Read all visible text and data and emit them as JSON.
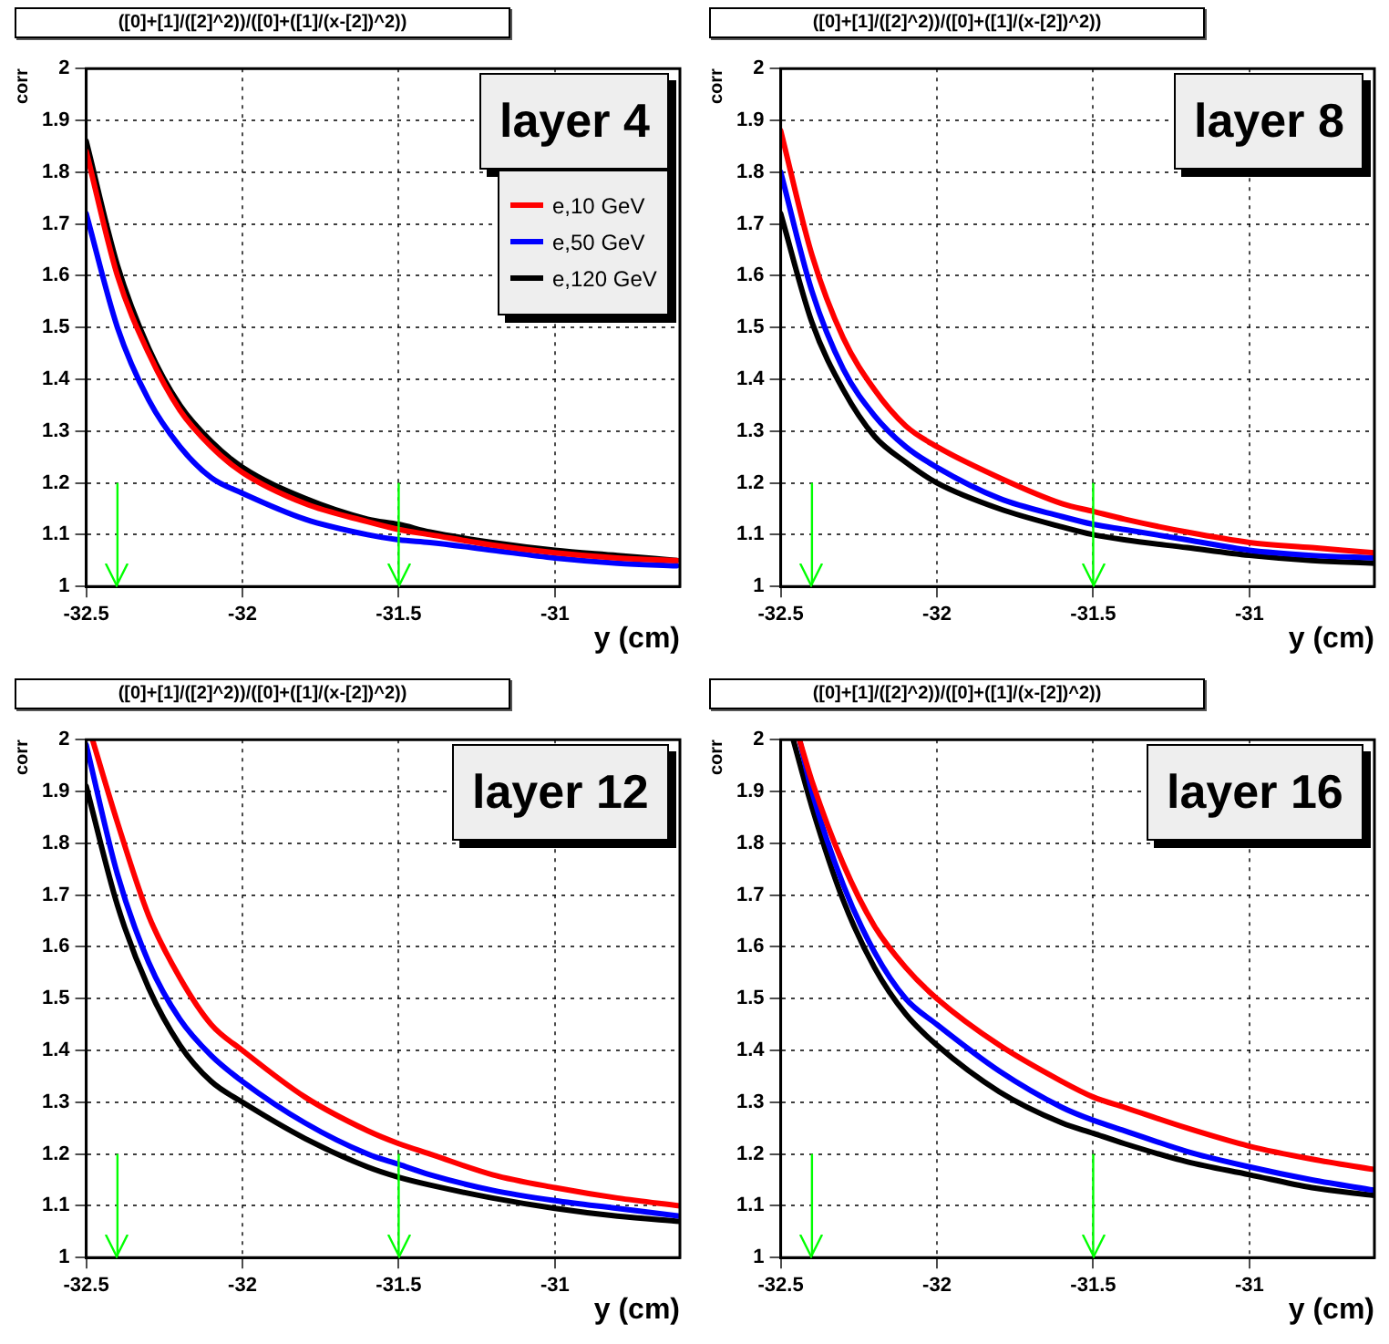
{
  "chart_data": [
    {
      "type": "line",
      "title": "([0]+[1]/([2]^2))/([0]+([1]/(x-[2])^2))",
      "xlabel": "y (cm)",
      "ylabel": "corr",
      "annotations": [
        "layer 4"
      ],
      "xlim": [
        -32.5,
        -30.6
      ],
      "xticks": [
        -32.5,
        -32,
        -31.5,
        -31
      ],
      "ylim": [
        1,
        2
      ],
      "yticks": [
        1,
        1.1,
        1.2,
        1.3,
        1.4,
        1.5,
        1.6,
        1.7,
        1.8,
        1.9,
        2
      ],
      "grid": true,
      "legend": "top right",
      "marker": "none",
      "line_style": "solid",
      "ref_lines": [
        {
          "axis": "x",
          "value": -32.4,
          "color": "#00ff00"
        },
        {
          "axis": "x",
          "value": -31.5,
          "color": "#00ff00"
        }
      ],
      "series": [
        {
          "name": "e,10 GeV",
          "color": "#ff0000",
          "x": [
            -32.5,
            -32.4,
            -32.3,
            -32.2,
            -32.1,
            -32.0,
            -31.8,
            -31.6,
            -31.5,
            -31.4,
            -31.2,
            -31.0,
            -30.8,
            -30.61
          ],
          "values": [
            1.84,
            1.6,
            1.45,
            1.34,
            1.27,
            1.22,
            1.16,
            1.125,
            1.11,
            1.1,
            1.08,
            1.065,
            1.055,
            1.05
          ]
        },
        {
          "name": "e,50 GeV",
          "color": "#0000ff",
          "x": [
            -32.5,
            -32.4,
            -32.3,
            -32.2,
            -32.1,
            -32.0,
            -31.8,
            -31.6,
            -31.5,
            -31.4,
            -31.2,
            -31.0,
            -30.8,
            -30.61
          ],
          "values": [
            1.72,
            1.5,
            1.36,
            1.27,
            1.21,
            1.18,
            1.13,
            1.1,
            1.09,
            1.085,
            1.07,
            1.055,
            1.045,
            1.04
          ]
        },
        {
          "name": "e,120 GeV",
          "color": "#000000",
          "x": [
            -32.5,
            -32.4,
            -32.3,
            -32.2,
            -32.1,
            -32.0,
            -31.8,
            -31.6,
            -31.5,
            -31.4,
            -31.2,
            -31.0,
            -30.8,
            -30.61
          ],
          "values": [
            1.86,
            1.62,
            1.46,
            1.35,
            1.28,
            1.23,
            1.17,
            1.13,
            1.12,
            1.105,
            1.085,
            1.07,
            1.06,
            1.05
          ]
        }
      ]
    },
    {
      "type": "line",
      "title": "([0]+[1]/([2]^2))/([0]+([1]/(x-[2])^2))",
      "xlabel": "y (cm)",
      "ylabel": "corr",
      "annotations": [
        "layer 8"
      ],
      "xlim": [
        -32.5,
        -30.6
      ],
      "xticks": [
        -32.5,
        -32,
        -31.5,
        -31
      ],
      "ylim": [
        1,
        2
      ],
      "yticks": [
        1,
        1.1,
        1.2,
        1.3,
        1.4,
        1.5,
        1.6,
        1.7,
        1.8,
        1.9,
        2
      ],
      "grid": true,
      "marker": "none",
      "line_style": "solid",
      "ref_lines": [
        {
          "axis": "x",
          "value": -32.4,
          "color": "#00ff00"
        },
        {
          "axis": "x",
          "value": -31.5,
          "color": "#00ff00"
        }
      ],
      "series": [
        {
          "color": "#ff0000",
          "x": [
            -32.5,
            -32.4,
            -32.3,
            -32.2,
            -32.1,
            -32.0,
            -31.8,
            -31.6,
            -31.5,
            -31.4,
            -31.2,
            -31.0,
            -30.8,
            -30.6
          ],
          "values": [
            1.88,
            1.64,
            1.48,
            1.38,
            1.31,
            1.27,
            1.21,
            1.16,
            1.145,
            1.13,
            1.105,
            1.085,
            1.075,
            1.065
          ]
        },
        {
          "color": "#0000ff",
          "x": [
            -32.5,
            -32.4,
            -32.3,
            -32.2,
            -32.1,
            -32.0,
            -31.8,
            -31.6,
            -31.5,
            -31.4,
            -31.2,
            -31.0,
            -30.8,
            -30.6
          ],
          "values": [
            1.8,
            1.57,
            1.42,
            1.33,
            1.27,
            1.23,
            1.17,
            1.135,
            1.12,
            1.11,
            1.09,
            1.07,
            1.06,
            1.055
          ]
        },
        {
          "color": "#000000",
          "x": [
            -32.5,
            -32.4,
            -32.3,
            -32.2,
            -32.1,
            -32.0,
            -31.8,
            -31.6,
            -31.5,
            -31.4,
            -31.2,
            -31.0,
            -30.8,
            -30.6
          ],
          "values": [
            1.72,
            1.51,
            1.38,
            1.29,
            1.24,
            1.2,
            1.15,
            1.115,
            1.1,
            1.09,
            1.075,
            1.06,
            1.05,
            1.045
          ]
        }
      ]
    },
    {
      "type": "line",
      "title": "([0]+[1]/([2]^2))/([0]+([1]/(x-[2])^2))",
      "xlabel": "y (cm)",
      "ylabel": "corr",
      "annotations": [
        "layer 12"
      ],
      "xlim": [
        -32.5,
        -30.6
      ],
      "xticks": [
        -32.5,
        -32,
        -31.5,
        -31
      ],
      "ylim": [
        1,
        2
      ],
      "yticks": [
        1,
        1.1,
        1.2,
        1.3,
        1.4,
        1.5,
        1.6,
        1.7,
        1.8,
        1.9,
        2
      ],
      "grid": true,
      "marker": "none",
      "line_style": "solid",
      "ref_lines": [
        {
          "axis": "x",
          "value": -32.4,
          "color": "#00ff00"
        },
        {
          "axis": "x",
          "value": -31.5,
          "color": "#00ff00"
        }
      ],
      "series": [
        {
          "color": "#ff0000",
          "x": [
            -32.48,
            -32.4,
            -32.3,
            -32.2,
            -32.1,
            -32.0,
            -31.8,
            -31.6,
            -31.5,
            -31.4,
            -31.2,
            -31.0,
            -30.8,
            -30.6
          ],
          "values": [
            2.0,
            1.84,
            1.66,
            1.54,
            1.45,
            1.4,
            1.31,
            1.245,
            1.22,
            1.2,
            1.16,
            1.135,
            1.115,
            1.1
          ]
        },
        {
          "color": "#0000ff",
          "x": [
            -32.5,
            -32.4,
            -32.3,
            -32.2,
            -32.1,
            -32.0,
            -31.8,
            -31.6,
            -31.5,
            -31.4,
            -31.2,
            -31.0,
            -30.8,
            -30.6
          ],
          "values": [
            1.99,
            1.74,
            1.57,
            1.46,
            1.39,
            1.34,
            1.26,
            1.2,
            1.18,
            1.16,
            1.13,
            1.11,
            1.095,
            1.08
          ]
        },
        {
          "color": "#000000",
          "x": [
            -32.5,
            -32.4,
            -32.3,
            -32.2,
            -32.1,
            -32.0,
            -31.8,
            -31.6,
            -31.5,
            -31.4,
            -31.2,
            -31.0,
            -30.8,
            -30.6
          ],
          "values": [
            1.91,
            1.68,
            1.52,
            1.41,
            1.34,
            1.3,
            1.23,
            1.175,
            1.155,
            1.14,
            1.115,
            1.095,
            1.08,
            1.07
          ]
        }
      ]
    },
    {
      "type": "line",
      "title": "([0]+[1]/([2]^2))/([0]+([1]/(x-[2])^2))",
      "xlabel": "y (cm)",
      "ylabel": "corr",
      "annotations": [
        "layer 16"
      ],
      "xlim": [
        -32.5,
        -30.6
      ],
      "xticks": [
        -32.5,
        -32,
        -31.5,
        -31
      ],
      "ylim": [
        1,
        2
      ],
      "yticks": [
        1,
        1.1,
        1.2,
        1.3,
        1.4,
        1.5,
        1.6,
        1.7,
        1.8,
        1.9,
        2
      ],
      "grid": true,
      "marker": "none",
      "line_style": "solid",
      "ref_lines": [
        {
          "axis": "x",
          "value": -32.4,
          "color": "#00ff00"
        },
        {
          "axis": "x",
          "value": -31.5,
          "color": "#00ff00"
        }
      ],
      "series": [
        {
          "color": "#ff0000",
          "x": [
            -32.44,
            -32.4,
            -32.3,
            -32.2,
            -32.1,
            -32.0,
            -31.8,
            -31.6,
            -31.5,
            -31.4,
            -31.2,
            -31.0,
            -30.8,
            -30.6
          ],
          "values": [
            2.0,
            1.92,
            1.76,
            1.64,
            1.56,
            1.5,
            1.41,
            1.34,
            1.31,
            1.29,
            1.25,
            1.215,
            1.19,
            1.17
          ]
        },
        {
          "color": "#0000ff",
          "x": [
            -32.44,
            -32.4,
            -32.3,
            -32.2,
            -32.1,
            -32.0,
            -31.8,
            -31.6,
            -31.5,
            -31.4,
            -31.2,
            -31.0,
            -30.8,
            -30.6
          ],
          "values": [
            2.0,
            1.9,
            1.72,
            1.59,
            1.5,
            1.45,
            1.36,
            1.29,
            1.265,
            1.245,
            1.205,
            1.175,
            1.15,
            1.13
          ]
        },
        {
          "color": "#000000",
          "x": [
            -32.46,
            -32.4,
            -32.3,
            -32.2,
            -32.1,
            -32.0,
            -31.8,
            -31.6,
            -31.5,
            -31.4,
            -31.2,
            -31.0,
            -30.8,
            -30.6
          ],
          "values": [
            2.0,
            1.87,
            1.69,
            1.56,
            1.47,
            1.41,
            1.32,
            1.26,
            1.24,
            1.22,
            1.185,
            1.16,
            1.135,
            1.12
          ]
        }
      ]
    }
  ]
}
